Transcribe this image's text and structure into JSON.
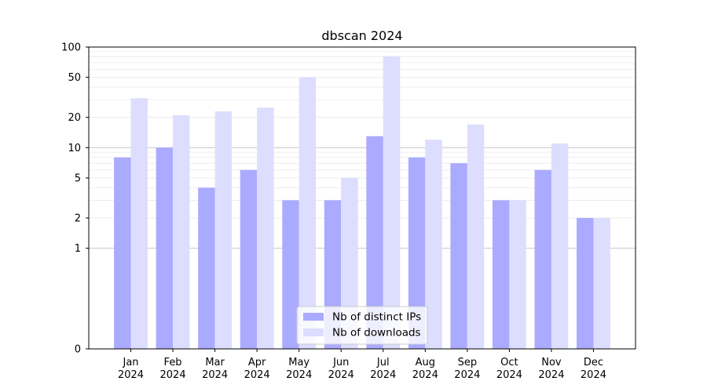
{
  "chart_data": {
    "type": "bar",
    "title": "dbscan 2024",
    "xlabel": "",
    "ylabel": "",
    "yscale": "symlog",
    "ylim": [
      0,
      100
    ],
    "yticks": [
      0,
      1,
      2,
      5,
      10,
      20,
      50,
      100
    ],
    "grid": "horizontal",
    "legend_position": "bottom-center",
    "categories": [
      [
        "Jan",
        "2024"
      ],
      [
        "Feb",
        "2024"
      ],
      [
        "Mar",
        "2024"
      ],
      [
        "Apr",
        "2024"
      ],
      [
        "May",
        "2024"
      ],
      [
        "Jun",
        "2024"
      ],
      [
        "Jul",
        "2024"
      ],
      [
        "Aug",
        "2024"
      ],
      [
        "Sep",
        "2024"
      ],
      [
        "Oct",
        "2024"
      ],
      [
        "Nov",
        "2024"
      ],
      [
        "Dec",
        "2024"
      ]
    ],
    "series": [
      {
        "name": "Nb of distinct IPs",
        "color": "#aaaaff",
        "values": [
          8,
          10,
          4,
          6,
          3,
          3,
          13,
          8,
          7,
          3,
          6,
          2
        ]
      },
      {
        "name": "Nb of downloads",
        "color": "#ddddff",
        "values": [
          31,
          21,
          23,
          25,
          50,
          5,
          81,
          12,
          17,
          3,
          11,
          2
        ]
      }
    ]
  }
}
